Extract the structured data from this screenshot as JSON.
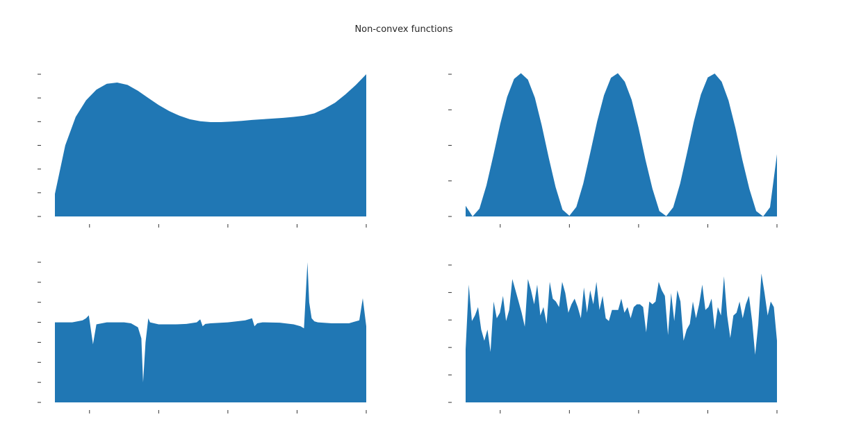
{
  "figure": {
    "title": "Non-convex functions"
  },
  "style": {
    "fill_color": "#2077b4",
    "tick_color": "#333333"
  },
  "chart_data": [
    {
      "type": "area",
      "title": "",
      "xlabel": "",
      "ylabel": "",
      "grid": false,
      "legend": "none",
      "xlim": [
        0,
        9
      ],
      "ylim": [
        0,
        6
      ],
      "x_ticks": [
        1,
        3,
        5,
        7,
        9
      ],
      "y_ticks": [
        0,
        1,
        2,
        3,
        4,
        5,
        6
      ],
      "series": [
        {
          "x": [
            0,
            0.3,
            0.6,
            0.9,
            1.2,
            1.5,
            1.8,
            2.1,
            2.4,
            2.7,
            3.0,
            3.3,
            3.6,
            3.9,
            4.2,
            4.5,
            4.8,
            5.1,
            5.4,
            5.7,
            6.0,
            6.3,
            6.6,
            6.9,
            7.2,
            7.5,
            7.8,
            8.1,
            8.4,
            8.7,
            9.0
          ],
          "y": [
            0.95,
            3.0,
            4.2,
            4.9,
            5.35,
            5.6,
            5.65,
            5.55,
            5.3,
            5.0,
            4.7,
            4.45,
            4.25,
            4.1,
            4.02,
            3.98,
            3.98,
            4.0,
            4.03,
            4.07,
            4.1,
            4.13,
            4.16,
            4.2,
            4.25,
            4.35,
            4.55,
            4.8,
            5.15,
            5.55,
            6.0
          ]
        }
      ]
    },
    {
      "type": "area",
      "title": "",
      "xlabel": "",
      "ylabel": "",
      "grid": false,
      "legend": "none",
      "xlim": [
        0,
        9
      ],
      "ylim": [
        0,
        4
      ],
      "x_ticks": [
        1,
        3,
        5,
        7,
        9
      ],
      "y_ticks": [
        0,
        1,
        2,
        3,
        4
      ],
      "series": [
        {
          "x": [
            0,
            0.2,
            0.4,
            0.6,
            0.8,
            1.0,
            1.2,
            1.4,
            1.6,
            1.8,
            2.0,
            2.2,
            2.4,
            2.6,
            2.8,
            3.0,
            3.2,
            3.4,
            3.6,
            3.8,
            4.0,
            4.2,
            4.4,
            4.6,
            4.8,
            5.0,
            5.2,
            5.4,
            5.6,
            5.8,
            6.0,
            6.2,
            6.4,
            6.6,
            6.8,
            7.0,
            7.2,
            7.4,
            7.6,
            7.8,
            8.0,
            8.2,
            8.4,
            8.6,
            8.8,
            9.0
          ],
          "y": [
            0.3,
            0.0,
            0.22,
            0.87,
            1.71,
            2.6,
            3.36,
            3.87,
            4.03,
            3.85,
            3.34,
            2.56,
            1.66,
            0.83,
            0.19,
            0.02,
            0.27,
            0.92,
            1.78,
            2.67,
            3.41,
            3.9,
            4.03,
            3.79,
            3.28,
            2.49,
            1.59,
            0.78,
            0.15,
            0.01,
            0.26,
            0.92,
            1.79,
            2.68,
            3.43,
            3.91,
            4.02,
            3.79,
            3.26,
            2.48,
            1.59,
            0.78,
            0.15,
            0.0,
            0.26,
            1.75
          ]
        }
      ]
    },
    {
      "type": "area",
      "title": "",
      "xlabel": "",
      "ylabel": "",
      "grid": false,
      "legend": "none",
      "xlim": [
        0,
        9
      ],
      "ylim": [
        0,
        7
      ],
      "x_ticks": [
        1,
        3,
        5,
        7,
        9
      ],
      "y_ticks": [
        0,
        1,
        2,
        3,
        4,
        5,
        6,
        7
      ],
      "series": [
        {
          "x": [
            0,
            0.5,
            0.8,
            0.9,
            0.98,
            1.1,
            1.2,
            1.5,
            1.8,
            2.0,
            2.2,
            2.4,
            2.5,
            2.55,
            2.62,
            2.7,
            2.75,
            3.0,
            3.5,
            3.8,
            4.1,
            4.2,
            4.27,
            4.35,
            4.5,
            5.0,
            5.5,
            5.7,
            5.77,
            5.85,
            6.0,
            6.5,
            6.9,
            7.1,
            7.2,
            7.3,
            7.35,
            7.42,
            7.5,
            7.6,
            8.0,
            8.5,
            8.8,
            8.9,
            9.0
          ],
          "y": [
            4.0,
            4.0,
            4.1,
            4.2,
            4.35,
            2.9,
            3.9,
            4.0,
            4.0,
            4.0,
            3.95,
            3.75,
            3.2,
            1.0,
            3.0,
            4.2,
            4.0,
            3.9,
            3.9,
            3.92,
            4.0,
            4.15,
            3.8,
            3.92,
            3.95,
            4.0,
            4.1,
            4.2,
            3.8,
            3.95,
            4.0,
            3.98,
            3.9,
            3.8,
            3.7,
            7.0,
            5.0,
            4.2,
            4.05,
            4.0,
            3.95,
            3.95,
            4.1,
            5.2,
            3.8
          ]
        }
      ]
    },
    {
      "type": "area",
      "title": "",
      "xlabel": "",
      "ylabel": "",
      "grid": false,
      "legend": "none",
      "xlim": [
        0,
        9
      ],
      "ylim": [
        0,
        5
      ],
      "x_ticks": [
        1,
        3,
        5,
        7,
        9
      ],
      "y_ticks": [
        0,
        1,
        2,
        3,
        4,
        5
      ],
      "series": [
        {
          "x": [
            0,
            0.09,
            0.18,
            0.27,
            0.36,
            0.45,
            0.54,
            0.63,
            0.72,
            0.81,
            0.9,
            0.99,
            1.08,
            1.17,
            1.26,
            1.35,
            1.44,
            1.53,
            1.62,
            1.71,
            1.8,
            1.89,
            1.98,
            2.07,
            2.16,
            2.25,
            2.34,
            2.43,
            2.52,
            2.61,
            2.7,
            2.79,
            2.88,
            2.97,
            3.06,
            3.15,
            3.24,
            3.33,
            3.42,
            3.51,
            3.6,
            3.69,
            3.78,
            3.87,
            3.96,
            4.05,
            4.14,
            4.23,
            4.32,
            4.41,
            4.5,
            4.59,
            4.68,
            4.77,
            4.86,
            4.95,
            5.04,
            5.13,
            5.22,
            5.31,
            5.4,
            5.49,
            5.58,
            5.67,
            5.76,
            5.85,
            5.94,
            6.03,
            6.12,
            6.21,
            6.3,
            6.39,
            6.48,
            6.57,
            6.66,
            6.75,
            6.84,
            6.93,
            7.02,
            7.11,
            7.2,
            7.29,
            7.38,
            7.47,
            7.56,
            7.65,
            7.74,
            7.83,
            7.92,
            8.01,
            8.1,
            8.19,
            8.28,
            8.37,
            8.46,
            8.55,
            8.64,
            8.73,
            8.82,
            8.91,
            9.0
          ],
          "y": [
            1.9,
            4.2,
            2.9,
            3.1,
            3.4,
            2.6,
            2.2,
            2.6,
            1.8,
            3.6,
            3.0,
            3.2,
            3.8,
            2.9,
            3.3,
            4.4,
            4.0,
            3.6,
            3.2,
            2.7,
            4.4,
            4.0,
            3.5,
            4.2,
            3.1,
            3.4,
            2.8,
            4.3,
            3.7,
            3.6,
            3.4,
            4.3,
            3.9,
            3.2,
            3.5,
            3.7,
            3.4,
            3.0,
            4.1,
            3.2,
            4.0,
            3.5,
            4.3,
            3.3,
            3.8,
            3.0,
            2.9,
            3.3,
            3.3,
            3.3,
            3.7,
            3.2,
            3.4,
            3.0,
            3.4,
            3.5,
            3.5,
            3.4,
            2.5,
            3.6,
            3.5,
            3.6,
            4.3,
            4.0,
            3.8,
            2.4,
            3.9,
            2.9,
            4.0,
            3.6,
            2.2,
            2.6,
            2.8,
            3.6,
            3.0,
            3.5,
            4.2,
            3.3,
            3.4,
            3.7,
            2.6,
            3.4,
            3.1,
            4.5,
            3.1,
            2.3,
            3.1,
            3.2,
            3.6,
            3.0,
            3.5,
            3.8,
            2.9,
            1.7,
            2.8,
            4.6,
            3.9,
            3.1,
            3.6,
            3.4,
            2.2
          ]
        }
      ]
    }
  ]
}
